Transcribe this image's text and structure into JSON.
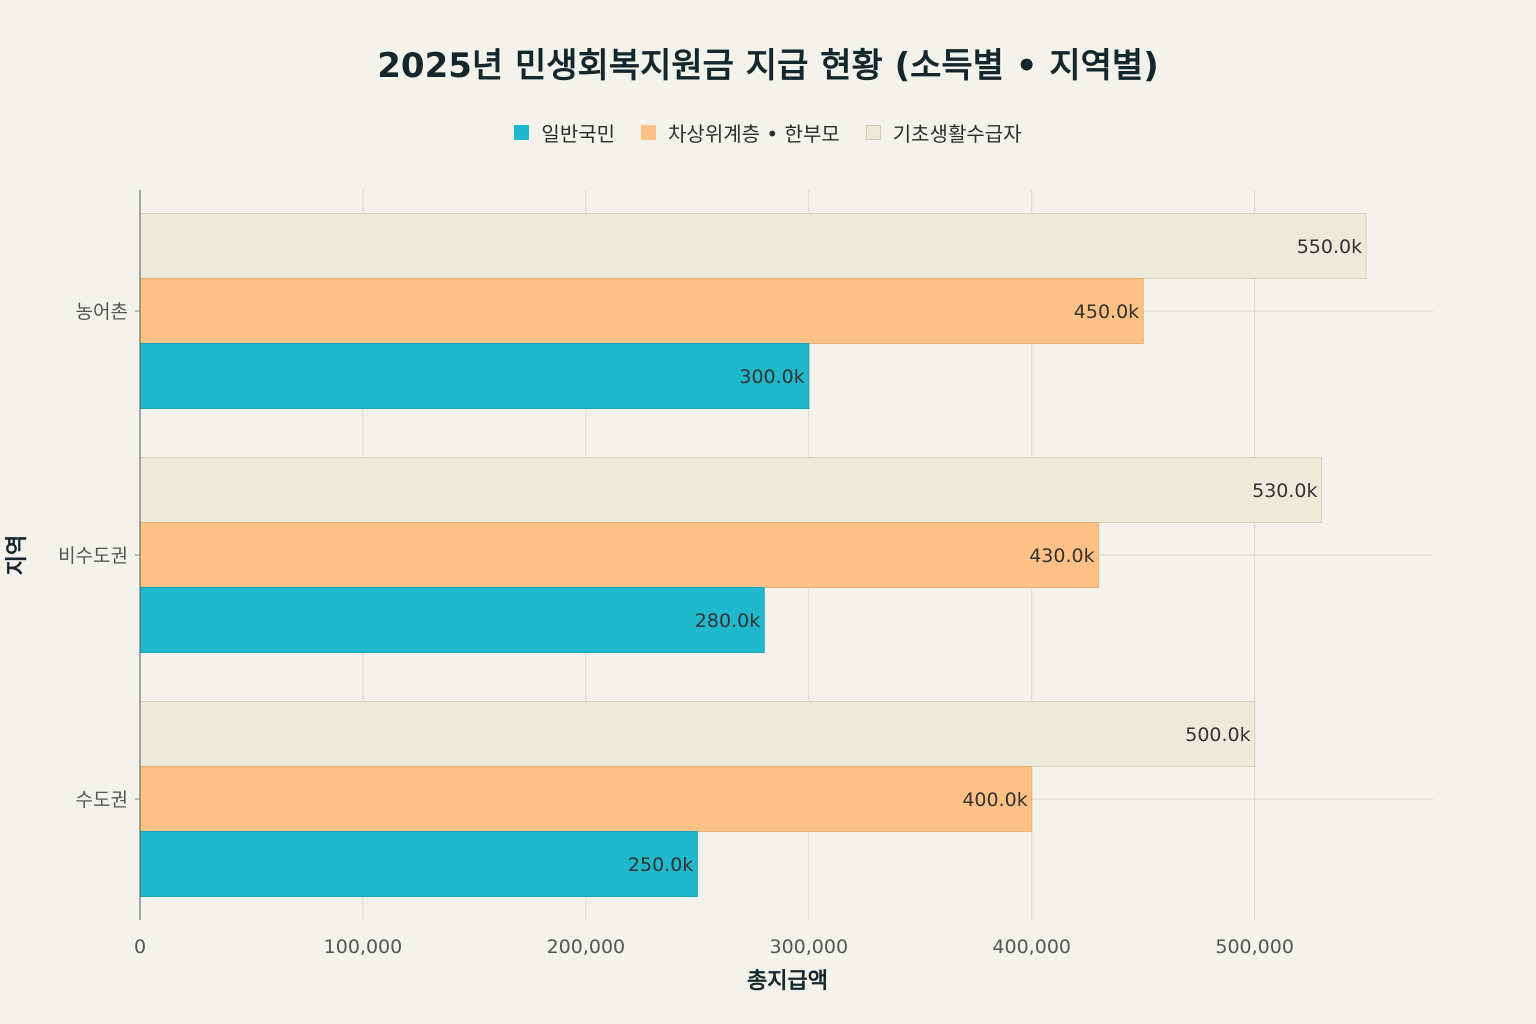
{
  "chart_data": {
    "type": "bar",
    "orientation": "horizontal",
    "title": "2025년 민생회복지원금 지급 현황 (소득별 • 지역별)",
    "xlabel": "총지급액",
    "ylabel": "지역",
    "categories": [
      "농어촌",
      "비수도권",
      "수도권"
    ],
    "series": [
      {
        "name": "일반국민",
        "color": "#20b8cd",
        "values": [
          300000,
          280000,
          250000
        ],
        "labels": [
          "300.0k",
          "280.0k",
          "250.0k"
        ]
      },
      {
        "name": "차상위계층 • 한부모",
        "color": "#ffc185",
        "values": [
          450000,
          430000,
          400000
        ],
        "labels": [
          "450.0k",
          "430.0k",
          "400.0k"
        ]
      },
      {
        "name": "기초생활수급자",
        "color": "#eceadb",
        "values": [
          550000,
          530000,
          500000
        ],
        "labels": [
          "550.0k",
          "530.0k",
          "500.0k"
        ]
      }
    ],
    "xlim": [
      0,
      580000
    ],
    "xticks": [
      0,
      100000,
      200000,
      300000,
      400000,
      500000
    ],
    "xtick_labels": [
      "0",
      "100,000",
      "200,000",
      "300,000",
      "400,000",
      "500,000"
    ],
    "grid": true,
    "legend_position": "top"
  }
}
